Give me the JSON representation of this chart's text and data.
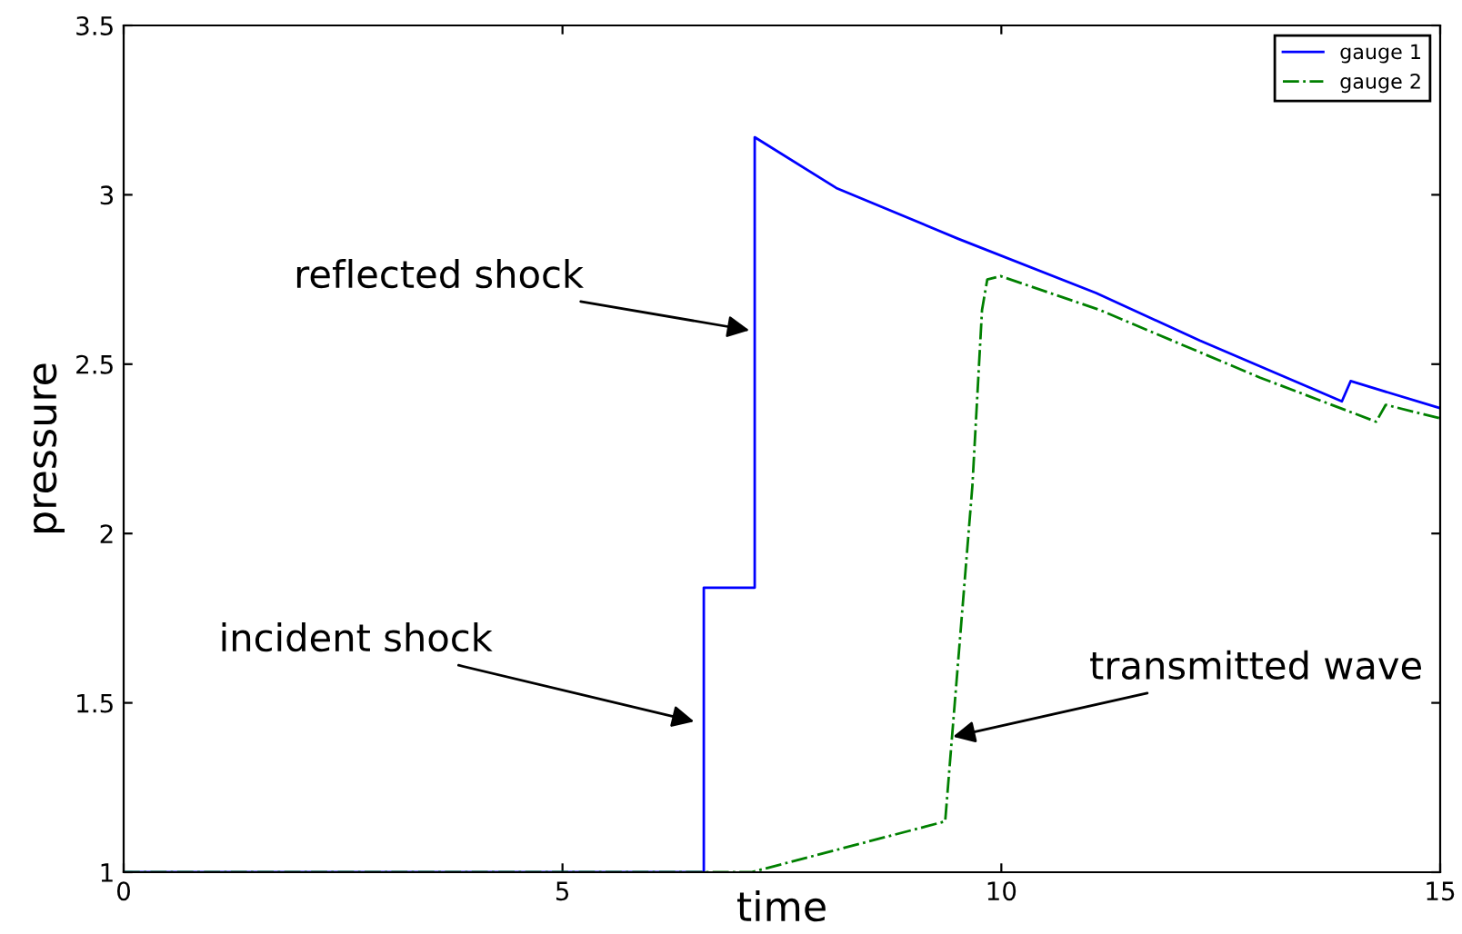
{
  "chart_data": {
    "type": "line",
    "xlabel": "time",
    "ylabel": "pressure",
    "xlim": [
      0,
      15
    ],
    "ylim": [
      1,
      3.5
    ],
    "xticks": [
      0,
      5,
      10,
      15
    ],
    "yticks": [
      1,
      1.5,
      2,
      2.5,
      3,
      3.5
    ],
    "grid": false,
    "legend": "top right",
    "series": [
      {
        "name": "gauge 1",
        "color": "#0000ff",
        "line_style": "solid",
        "x": [
          0,
          6.61,
          6.61,
          7.19,
          7.19,
          8.12,
          9.51,
          11.08,
          12.26,
          13.88,
          13.98,
          15
        ],
        "values": [
          1,
          1,
          1.84,
          1.84,
          3.17,
          3.02,
          2.87,
          2.71,
          2.57,
          2.39,
          2.45,
          2.37
        ]
      },
      {
        "name": "gauge 2",
        "color": "#008000",
        "line_style": "dashdot",
        "x": [
          0,
          7.15,
          9.36,
          9.67,
          9.78,
          9.84,
          9.99,
          11.12,
          12.95,
          14.27,
          14.38,
          15
        ],
        "values": [
          1,
          1,
          1.15,
          2.14,
          2.66,
          2.75,
          2.76,
          2.66,
          2.46,
          2.33,
          2.38,
          2.34
        ]
      }
    ],
    "annotations": [
      {
        "text": "reflected shock",
        "x": 7.13,
        "y": 2.6
      },
      {
        "text": "incident shock",
        "x": 6.5,
        "y": 1.445
      },
      {
        "text": "transmitted wave",
        "x": 9.45,
        "y": 1.4
      }
    ]
  }
}
